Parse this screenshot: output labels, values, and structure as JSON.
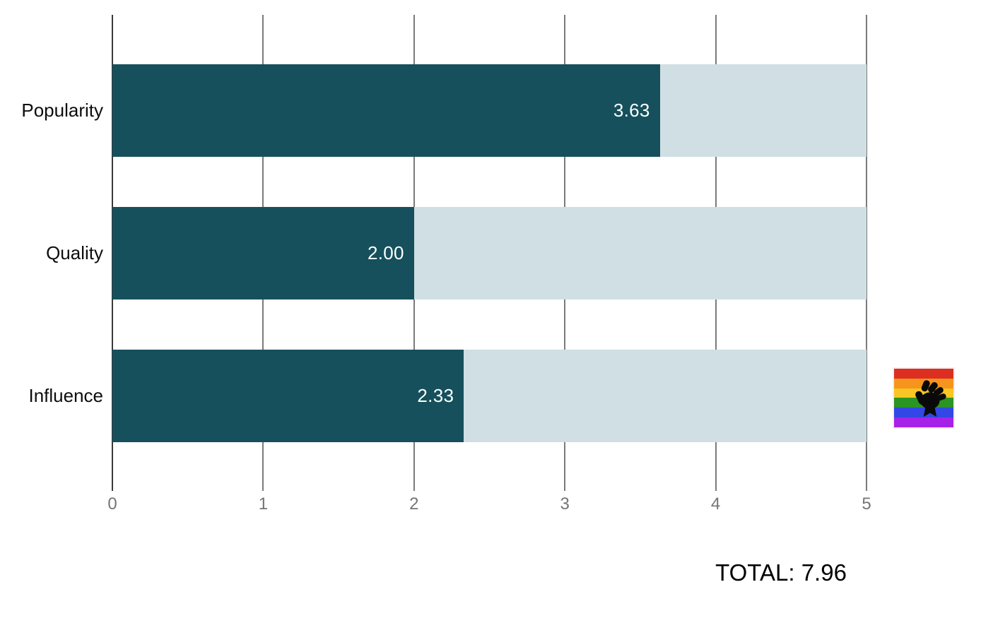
{
  "chart_data": {
    "type": "bar",
    "orientation": "horizontal",
    "title": "",
    "xlabel": "",
    "ylabel": "",
    "categories": [
      "Popularity",
      "Quality",
      "Influence"
    ],
    "values": [
      3.63,
      2.0,
      2.33
    ],
    "value_labels": [
      "3.63",
      "2.00",
      "2.33"
    ],
    "xlim": [
      0,
      5
    ],
    "x_tick_labels": [
      "0",
      "1",
      "2",
      "3",
      "4",
      "5"
    ],
    "grid": true,
    "legend": "none",
    "bar_color": "#15505c",
    "track_color": "#d0dfe3",
    "total_label": "TOTAL: 7.96"
  },
  "icons": {
    "badge": "pride-flag-black-fist-icon",
    "stripe_colors": [
      "#dd2e22",
      "#f7941d",
      "#f9c623",
      "#2a9523",
      "#3247e5",
      "#a722e8"
    ],
    "fist_color": "#0a0a0a"
  }
}
